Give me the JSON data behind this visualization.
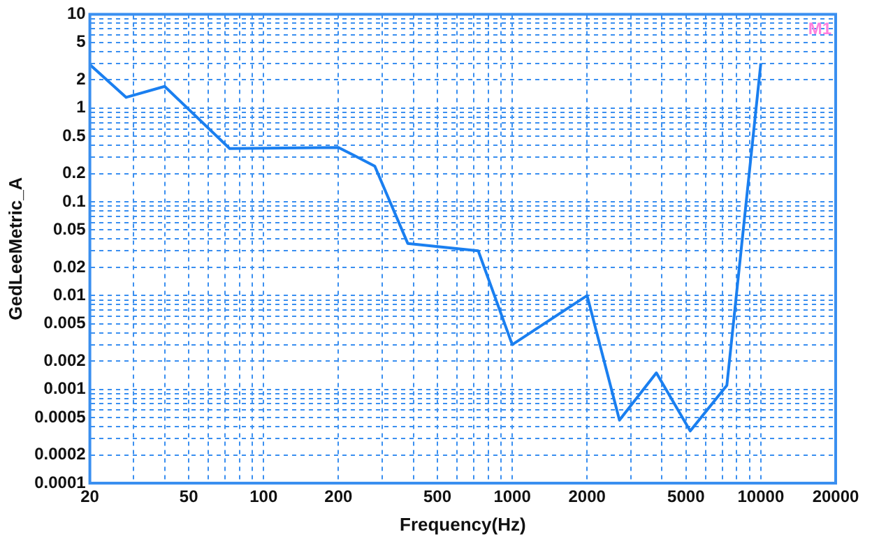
{
  "chart_data": {
    "type": "line",
    "xlabel": "Frequency(Hz)",
    "ylabel": "GedLeeMetric_A",
    "annotations": [
      "M1"
    ],
    "x": [
      20,
      28,
      40,
      73,
      200,
      280,
      380,
      730,
      1000,
      2000,
      2700,
      3800,
      5200,
      7300,
      10000
    ],
    "series": [
      {
        "color": "#1a7ff0",
        "values": [
          2.9,
          1.3,
          1.7,
          0.37,
          0.38,
          0.24,
          0.036,
          0.03,
          0.003,
          0.01,
          0.00047,
          0.0015,
          0.00036,
          0.0011,
          3
        ]
      }
    ],
    "log": "xy",
    "grid": true,
    "legend": false,
    "marker": "none",
    "line_style": "solid",
    "xlim": [
      20,
      20000
    ],
    "ylim": [
      0.0001,
      10
    ],
    "xticks": [
      20,
      {
        "value": 30,
        "label": null
      },
      {
        "value": 40,
        "label": null
      },
      50,
      {
        "value": 60,
        "label": null
      },
      {
        "value": 70,
        "label": null
      },
      {
        "value": 80,
        "label": null
      },
      {
        "value": 90,
        "label": null
      },
      100,
      200,
      {
        "value": 300,
        "label": null
      },
      {
        "value": 400,
        "label": null
      },
      500,
      {
        "value": 600,
        "label": null
      },
      {
        "value": 700,
        "label": null
      },
      {
        "value": 800,
        "label": null
      },
      {
        "value": 900,
        "label": null
      },
      1000,
      2000,
      {
        "value": 3000,
        "label": null
      },
      {
        "value": 4000,
        "label": null
      },
      5000,
      {
        "value": 6000,
        "label": null
      },
      {
        "value": 7000,
        "label": null
      },
      {
        "value": 8000,
        "label": null
      },
      {
        "value": 9000,
        "label": null
      },
      10000,
      20000
    ],
    "yticks": [
      0.0001,
      0.0002,
      {
        "value": 0.0003,
        "label": null
      },
      {
        "value": 0.0004,
        "label": null
      },
      0.0005,
      {
        "value": 0.0006,
        "label": null
      },
      {
        "value": 0.0007,
        "label": null
      },
      {
        "value": 0.0008,
        "label": null
      },
      {
        "value": 0.0009,
        "label": null
      },
      0.001,
      0.002,
      {
        "value": 0.003,
        "label": null
      },
      {
        "value": 0.004,
        "label": null
      },
      0.005,
      {
        "value": 0.006,
        "label": null
      },
      {
        "value": 0.007,
        "label": null
      },
      {
        "value": 0.008,
        "label": null
      },
      {
        "value": 0.009,
        "label": null
      },
      0.01,
      0.02,
      {
        "value": 0.03,
        "label": null
      },
      {
        "value": 0.04,
        "label": null
      },
      0.05,
      {
        "value": 0.06,
        "label": null
      },
      {
        "value": 0.07,
        "label": null
      },
      {
        "value": 0.08,
        "label": null
      },
      {
        "value": 0.09,
        "label": null
      },
      0.1,
      0.2,
      {
        "value": 0.3,
        "label": null
      },
      {
        "value": 0.4,
        "label": null
      },
      0.5,
      {
        "value": 0.6,
        "label": null
      },
      {
        "value": 0.7,
        "label": null
      },
      {
        "value": 0.8,
        "label": null
      },
      {
        "value": 0.9,
        "label": null
      },
      1,
      2,
      {
        "value": 3,
        "label": null
      },
      {
        "value": 4,
        "label": null
      },
      5,
      {
        "value": 6,
        "label": null
      },
      {
        "value": 7,
        "label": null
      },
      {
        "value": 8,
        "label": null
      },
      {
        "value": 9,
        "label": null
      },
      10
    ]
  }
}
